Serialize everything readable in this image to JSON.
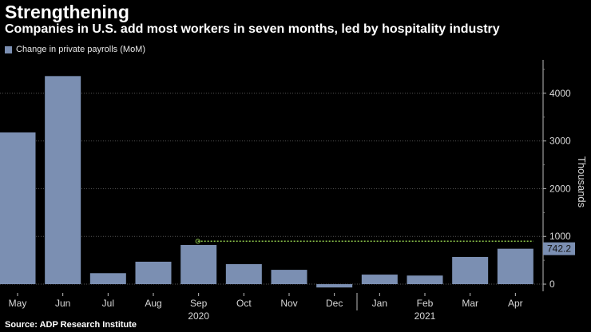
{
  "title": "Strengthening",
  "subtitle": "Companies in U.S. add most workers in seven months, led by hospitality industry",
  "source": "Source: ADP Research Institute",
  "colors": {
    "bar": "#7b8fb2",
    "grid": "#555555",
    "reference_line": "#8bc34a",
    "value_label_bg": "#7b8fb2"
  },
  "chart_data": {
    "type": "bar",
    "title": "Strengthening",
    "legend": [
      "Change in private payrolls (MoM)"
    ],
    "legend_position": "top-left",
    "categories": [
      "May",
      "Jun",
      "Jul",
      "Aug",
      "Sep",
      "Oct",
      "Nov",
      "Dec",
      "Jan",
      "Feb",
      "Mar",
      "Apr"
    ],
    "year_labels": [
      {
        "label": "2020",
        "under": "Sep"
      },
      {
        "label": "2021",
        "under": "Feb"
      }
    ],
    "series": [
      {
        "name": "Change in private payrolls (MoM)",
        "values": [
          3180,
          4360,
          230,
          470,
          820,
          420,
          300,
          -70,
          200,
          180,
          570,
          742.2
        ]
      }
    ],
    "ylabel": "Thousands",
    "ylim": [
      -150,
      4700
    ],
    "yticks": [
      0,
      1000,
      2000,
      3000,
      4000
    ],
    "reference_line": {
      "value": 900,
      "from": "Sep",
      "to": "Apr"
    },
    "last_value_label": "742.2",
    "grid": "horizontal",
    "y_axis_side": "right"
  }
}
